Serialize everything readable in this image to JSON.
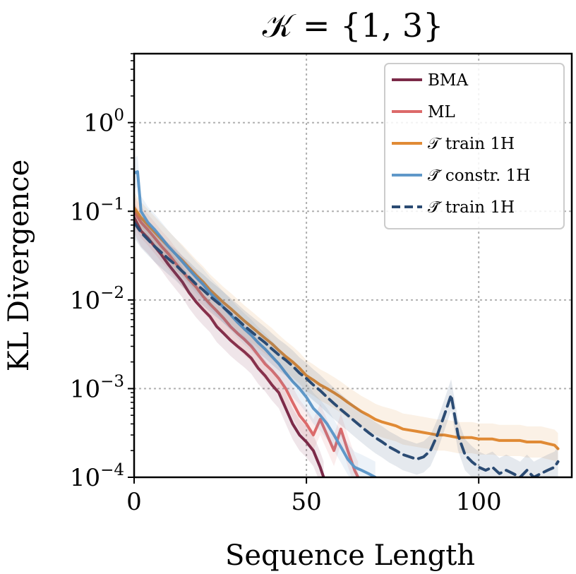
{
  "chart_data": {
    "type": "line",
    "title": "𝒦 = {1, 3}",
    "xlabel": "Sequence Length",
    "ylabel": "KL Divergence",
    "xlim": [
      0,
      127
    ],
    "ylim": [
      0.0001,
      6
    ],
    "yscale": "log",
    "grid": true,
    "legend_position": "top-right",
    "xticks": [
      {
        "value": 0,
        "label": "0"
      },
      {
        "value": 50,
        "label": "50"
      },
      {
        "value": 100,
        "label": "100"
      }
    ],
    "yticks": [
      {
        "value": 0.0001,
        "base": "10",
        "exp": "−4"
      },
      {
        "value": 0.001,
        "base": "10",
        "exp": "−3"
      },
      {
        "value": 0.01,
        "base": "10",
        "exp": "−2"
      },
      {
        "value": 0.1,
        "base": "10",
        "exp": "−1"
      },
      {
        "value": 1,
        "base": "10",
        "exp": "0"
      }
    ],
    "series": [
      {
        "name": "BMA",
        "color": "#7b2a48",
        "dash": false,
        "points": [
          [
            0,
            0.085
          ],
          [
            2,
            0.06
          ],
          [
            4,
            0.05
          ],
          [
            6,
            0.04
          ],
          [
            8,
            0.032
          ],
          [
            10,
            0.025
          ],
          [
            12,
            0.02
          ],
          [
            14,
            0.016
          ],
          [
            16,
            0.012
          ],
          [
            18,
            0.0095
          ],
          [
            20,
            0.0078
          ],
          [
            22,
            0.0065
          ],
          [
            24,
            0.005
          ],
          [
            26,
            0.0042
          ],
          [
            28,
            0.0035
          ],
          [
            30,
            0.003
          ],
          [
            32,
            0.0026
          ],
          [
            34,
            0.0022
          ],
          [
            36,
            0.0017
          ],
          [
            38,
            0.0014
          ],
          [
            40,
            0.0011
          ],
          [
            42,
            0.0009
          ],
          [
            44,
            0.0006
          ],
          [
            46,
            0.0004
          ],
          [
            48,
            0.0003
          ],
          [
            50,
            0.00025
          ],
          [
            52,
            0.0002
          ],
          [
            54,
            0.00013
          ],
          [
            55,
            0.0001
          ]
        ]
      },
      {
        "name": "ML",
        "color": "#dc6a6a",
        "dash": false,
        "points": [
          [
            0,
            0.1
          ],
          [
            2,
            0.075
          ],
          [
            4,
            0.062
          ],
          [
            6,
            0.05
          ],
          [
            8,
            0.04
          ],
          [
            10,
            0.033
          ],
          [
            12,
            0.026
          ],
          [
            14,
            0.021
          ],
          [
            16,
            0.017
          ],
          [
            18,
            0.014
          ],
          [
            20,
            0.011
          ],
          [
            22,
            0.009
          ],
          [
            24,
            0.0075
          ],
          [
            26,
            0.0062
          ],
          [
            28,
            0.005
          ],
          [
            30,
            0.0042
          ],
          [
            32,
            0.0036
          ],
          [
            34,
            0.003
          ],
          [
            36,
            0.0024
          ],
          [
            38,
            0.0019
          ],
          [
            40,
            0.0016
          ],
          [
            42,
            0.0013
          ],
          [
            44,
            0.001
          ],
          [
            46,
            0.0007
          ],
          [
            48,
            0.0005
          ],
          [
            50,
            0.0004
          ],
          [
            52,
            0.0003
          ],
          [
            54,
            0.00045
          ],
          [
            56,
            0.0003
          ],
          [
            58,
            0.0002
          ],
          [
            60,
            0.00035
          ],
          [
            62,
            0.0002
          ],
          [
            64,
            0.00012
          ],
          [
            65,
            0.0001
          ]
        ]
      },
      {
        "name": "𝒯 train 1H",
        "color": "#e08a35",
        "dash": false,
        "points": [
          [
            0,
            0.11
          ],
          [
            2,
            0.085
          ],
          [
            4,
            0.07
          ],
          [
            6,
            0.058
          ],
          [
            8,
            0.048
          ],
          [
            10,
            0.04
          ],
          [
            12,
            0.033
          ],
          [
            14,
            0.028
          ],
          [
            16,
            0.023
          ],
          [
            18,
            0.019
          ],
          [
            20,
            0.016
          ],
          [
            22,
            0.013
          ],
          [
            24,
            0.011
          ],
          [
            26,
            0.0093
          ],
          [
            28,
            0.008
          ],
          [
            30,
            0.0068
          ],
          [
            32,
            0.0058
          ],
          [
            34,
            0.005
          ],
          [
            36,
            0.0043
          ],
          [
            38,
            0.0037
          ],
          [
            40,
            0.0032
          ],
          [
            42,
            0.0027
          ],
          [
            44,
            0.0023
          ],
          [
            46,
            0.002
          ],
          [
            48,
            0.0017
          ],
          [
            50,
            0.0014
          ],
          [
            52,
            0.00125
          ],
          [
            54,
            0.0011
          ],
          [
            56,
            0.001
          ],
          [
            58,
            0.0009
          ],
          [
            60,
            0.0008
          ],
          [
            62,
            0.0007
          ],
          [
            64,
            0.00062
          ],
          [
            66,
            0.00055
          ],
          [
            68,
            0.0005
          ],
          [
            70,
            0.00045
          ],
          [
            72,
            0.00042
          ],
          [
            74,
            0.0004
          ],
          [
            76,
            0.00038
          ],
          [
            78,
            0.00035
          ],
          [
            80,
            0.00034
          ],
          [
            82,
            0.00033
          ],
          [
            84,
            0.00032
          ],
          [
            86,
            0.00031
          ],
          [
            88,
            0.0003
          ],
          [
            90,
            0.0003
          ],
          [
            92,
            0.00029
          ],
          [
            94,
            0.00028
          ],
          [
            96,
            0.00028
          ],
          [
            98,
            0.00028
          ],
          [
            100,
            0.00027
          ],
          [
            102,
            0.00027
          ],
          [
            104,
            0.00027
          ],
          [
            106,
            0.00026
          ],
          [
            108,
            0.00026
          ],
          [
            110,
            0.00026
          ],
          [
            112,
            0.00026
          ],
          [
            114,
            0.00025
          ],
          [
            116,
            0.00025
          ],
          [
            118,
            0.00025
          ],
          [
            120,
            0.00024
          ],
          [
            122,
            0.00023
          ],
          [
            123,
            0.00021
          ]
        ]
      },
      {
        "name": "𝒯̃ constr. 1H",
        "color": "#5f98c9",
        "dash": false,
        "points": [
          [
            0,
            0.27
          ],
          [
            1,
            0.28
          ],
          [
            2,
            0.1
          ],
          [
            4,
            0.075
          ],
          [
            6,
            0.062
          ],
          [
            8,
            0.05
          ],
          [
            10,
            0.04
          ],
          [
            12,
            0.033
          ],
          [
            14,
            0.027
          ],
          [
            16,
            0.022
          ],
          [
            18,
            0.018
          ],
          [
            20,
            0.015
          ],
          [
            22,
            0.012
          ],
          [
            24,
            0.01
          ],
          [
            26,
            0.0082
          ],
          [
            28,
            0.0068
          ],
          [
            30,
            0.0056
          ],
          [
            32,
            0.0047
          ],
          [
            34,
            0.004
          ],
          [
            36,
            0.0033
          ],
          [
            38,
            0.0028
          ],
          [
            40,
            0.0023
          ],
          [
            42,
            0.0019
          ],
          [
            44,
            0.0015
          ],
          [
            46,
            0.0012
          ],
          [
            48,
            0.001
          ],
          [
            50,
            0.0008
          ],
          [
            52,
            0.0006
          ],
          [
            54,
            0.0005
          ],
          [
            56,
            0.0004
          ],
          [
            58,
            0.0003
          ],
          [
            60,
            0.00022
          ],
          [
            62,
            0.00016
          ],
          [
            64,
            0.00013
          ],
          [
            66,
            0.00012
          ],
          [
            68,
            0.00011
          ],
          [
            70,
            0.0001
          ]
        ]
      },
      {
        "name": "𝒯̃ train 1H",
        "color": "#2b4b73",
        "dash": true,
        "points": [
          [
            0,
            0.075
          ],
          [
            2,
            0.058
          ],
          [
            4,
            0.048
          ],
          [
            6,
            0.04
          ],
          [
            8,
            0.034
          ],
          [
            10,
            0.029
          ],
          [
            12,
            0.025
          ],
          [
            14,
            0.021
          ],
          [
            16,
            0.018
          ],
          [
            18,
            0.015
          ],
          [
            20,
            0.013
          ],
          [
            22,
            0.011
          ],
          [
            24,
            0.0095
          ],
          [
            26,
            0.0082
          ],
          [
            28,
            0.007
          ],
          [
            30,
            0.006
          ],
          [
            32,
            0.0051
          ],
          [
            34,
            0.0044
          ],
          [
            36,
            0.0038
          ],
          [
            38,
            0.0033
          ],
          [
            40,
            0.0028
          ],
          [
            42,
            0.0024
          ],
          [
            44,
            0.0021
          ],
          [
            46,
            0.0018
          ],
          [
            48,
            0.0015
          ],
          [
            50,
            0.0013
          ],
          [
            52,
            0.0011
          ],
          [
            54,
            0.00095
          ],
          [
            56,
            0.0008
          ],
          [
            58,
            0.00068
          ],
          [
            60,
            0.00058
          ],
          [
            62,
            0.0005
          ],
          [
            64,
            0.00043
          ],
          [
            66,
            0.00037
          ],
          [
            68,
            0.00032
          ],
          [
            70,
            0.00028
          ],
          [
            72,
            0.00025
          ],
          [
            74,
            0.00022
          ],
          [
            76,
            0.0002
          ],
          [
            78,
            0.00018
          ],
          [
            80,
            0.00017
          ],
          [
            82,
            0.00016
          ],
          [
            84,
            0.00017
          ],
          [
            86,
            0.0002
          ],
          [
            88,
            0.0003
          ],
          [
            90,
            0.0005
          ],
          [
            92,
            0.00085
          ],
          [
            94,
            0.0003
          ],
          [
            96,
            0.00018
          ],
          [
            98,
            0.00015
          ],
          [
            100,
            0.00013
          ],
          [
            102,
            0.00012
          ],
          [
            104,
            0.00013
          ],
          [
            106,
            0.00011
          ],
          [
            108,
            0.00012
          ],
          [
            110,
            0.00011
          ],
          [
            112,
            0.0001
          ],
          [
            114,
            0.00012
          ],
          [
            116,
            0.0001
          ],
          [
            118,
            0.00011
          ],
          [
            120,
            0.00012
          ],
          [
            122,
            0.00013
          ],
          [
            123,
            0.00015
          ]
        ]
      }
    ]
  }
}
